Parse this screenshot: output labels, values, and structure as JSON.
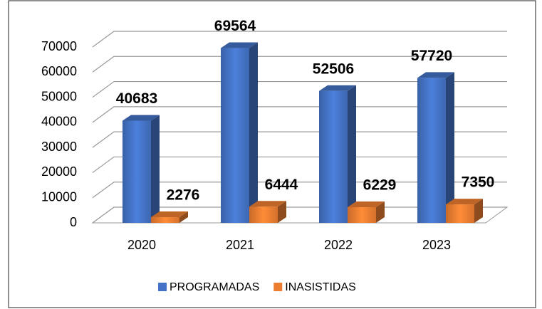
{
  "chart_data": {
    "type": "bar3d",
    "categories": [
      "2020",
      "2021",
      "2022",
      "2023"
    ],
    "series": [
      {
        "name": "PROGRAMADAS",
        "color": "#4472c4",
        "values": [
          40683,
          69564,
          52506,
          57720
        ]
      },
      {
        "name": "INASISTIDAS",
        "color": "#ed7d31",
        "values": [
          2276,
          6444,
          6229,
          7350
        ]
      }
    ],
    "ylim": [
      0,
      70000
    ],
    "yticks": [
      0,
      10000,
      20000,
      30000,
      40000,
      50000,
      60000,
      70000
    ],
    "grid": true,
    "legend": "bottom"
  }
}
